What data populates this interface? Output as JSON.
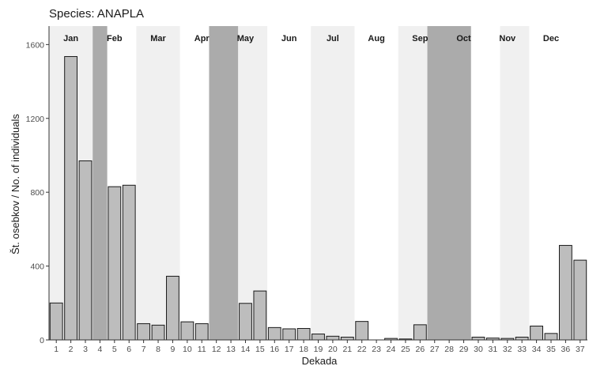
{
  "chart_data": {
    "type": "bar",
    "title": "Species: ANAPLA",
    "xlabel": "Dekada",
    "ylabel": "Št. osebkov / No. of individuals",
    "ylim": [
      0,
      1700
    ],
    "yticks": [
      0,
      400,
      800,
      1200,
      1600
    ],
    "categories": [
      "1",
      "2",
      "3",
      "4",
      "5",
      "6",
      "7",
      "8",
      "9",
      "10",
      "11",
      "12",
      "13",
      "14",
      "15",
      "16",
      "17",
      "18",
      "19",
      "20",
      "21",
      "22",
      "23",
      "24",
      "25",
      "26",
      "27",
      "28",
      "29",
      "30",
      "31",
      "32",
      "33",
      "34",
      "35",
      "36",
      "37"
    ],
    "values": [
      200,
      1535,
      970,
      0,
      830,
      838,
      88,
      80,
      345,
      98,
      88,
      0,
      0,
      198,
      265,
      67,
      60,
      62,
      32,
      20,
      15,
      100,
      0,
      8,
      5,
      82,
      0,
      0,
      0,
      15,
      10,
      8,
      15,
      75,
      35,
      512,
      432
    ],
    "bar_fill": "#bdbdbd",
    "bar_stroke": "#1a1a1a",
    "months": [
      {
        "label": "Jan",
        "start": 1,
        "end": 3
      },
      {
        "label": "Feb",
        "start": 4,
        "end": 6
      },
      {
        "label": "Mar",
        "start": 7,
        "end": 9
      },
      {
        "label": "Apr",
        "start": 10,
        "end": 12
      },
      {
        "label": "May",
        "start": 13,
        "end": 15
      },
      {
        "label": "Jun",
        "start": 16,
        "end": 18
      },
      {
        "label": "Jul",
        "start": 19,
        "end": 21
      },
      {
        "label": "Aug",
        "start": 22,
        "end": 24
      },
      {
        "label": "Sep",
        "start": 25,
        "end": 27
      },
      {
        "label": "Oct",
        "start": 28,
        "end": 30
      },
      {
        "label": "Nov",
        "start": 31,
        "end": 33
      },
      {
        "label": "Dec",
        "start": 34,
        "end": 36
      }
    ],
    "shaded_bands": [
      {
        "start": 0.5,
        "end": 3.5,
        "shade": "light"
      },
      {
        "start": 3.5,
        "end": 4.5,
        "shade": "dark"
      },
      {
        "start": 6.5,
        "end": 9.5,
        "shade": "light"
      },
      {
        "start": 11.5,
        "end": 13.5,
        "shade": "dark"
      },
      {
        "start": 13.5,
        "end": 15.5,
        "shade": "light"
      },
      {
        "start": 18.5,
        "end": 21.5,
        "shade": "light"
      },
      {
        "start": 24.5,
        "end": 26.5,
        "shade": "light"
      },
      {
        "start": 26.5,
        "end": 29.5,
        "shade": "dark"
      },
      {
        "start": 31.5,
        "end": 33.5,
        "shade": "light"
      }
    ],
    "shade_colors": {
      "light": "#f0f0f0",
      "dark": "#ababab"
    },
    "grid": false
  }
}
